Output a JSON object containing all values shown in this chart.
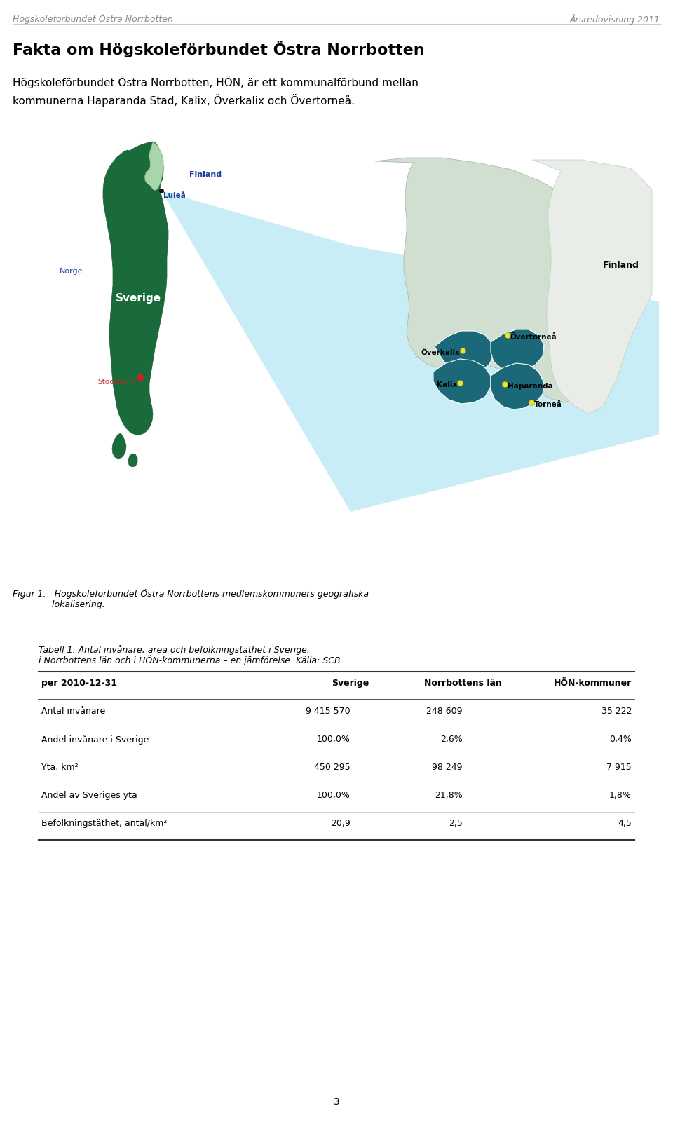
{
  "page_bg": "#ffffff",
  "header_left": "Högskoleförbundet Östra Norrbotten",
  "header_right": "Årsredovisning 2011",
  "header_color": "#888888",
  "header_fontsize": 9,
  "main_title": "Fakta om Högskoleförbundet Östra Norrbotten",
  "main_title_fontsize": 16,
  "body_text": "Högskoleförbundet Östra Norrbotten, HÖN, är ett kommunalförbund mellan\nkommunerna Haparanda Stad, Kalix, Överkalix och Övertorneå.",
  "body_fontsize": 11,
  "figur_caption_line1": "Figur 1.   Högskoleförbundet Östra Norrbottens medlemskommuners geografiska",
  "figur_caption_line2": "              lokalisering.",
  "figur_caption_fontsize": 9,
  "tabell_title_line1": "Tabell 1. Antal invånare, area och befolkningstäthet i Sverige,",
  "tabell_title_line2": "i Norrbottens län och i HÖN-kommunerna – en jämförelse. Källa: SCB.",
  "tabell_title_fontsize": 9,
  "col_header": [
    "per 2010-12-31",
    "Sverige",
    "Norrbottens län",
    "HÖN-kommuner"
  ],
  "col_header_fontsize": 9,
  "rows": [
    [
      "Antal invånare",
      "9 415 570",
      "248 609",
      "35 222"
    ],
    [
      "Andel invånare i Sverige",
      "100,0%",
      "2,6%",
      "0,4%"
    ],
    [
      "Yta, km²",
      "450 295",
      "98 249",
      "7 915"
    ],
    [
      "Andel av Sveriges yta",
      "100,0%",
      "21,8%",
      "1,8%"
    ],
    [
      "Befolkningstäthet, antal/km²",
      "20,9",
      "2,5",
      "4,5"
    ]
  ],
  "row_fontsize": 9,
  "table_line_color": "#333333",
  "page_number": "3",
  "sweden_color": "#1a6b3c",
  "norrbotten_highlight_color": "#a8d5aa",
  "hon_color": "#1a6878",
  "norrbotten_bg_color": "#c8dfc8",
  "fan_color": "#b8e8f5",
  "norway_label_color": "#1a3fa0",
  "finland_label_color": "#1a3fa0",
  "sverige_label_color": "#ffffff",
  "stockholm_dot_color": "#cc2222",
  "stockholm_label_color": "#cc2222",
  "lulea_dot_color": "#111111",
  "lulea_label_color": "#1a3fa0",
  "city_dot_color": "#f0e030",
  "city_label_color": "#000000"
}
